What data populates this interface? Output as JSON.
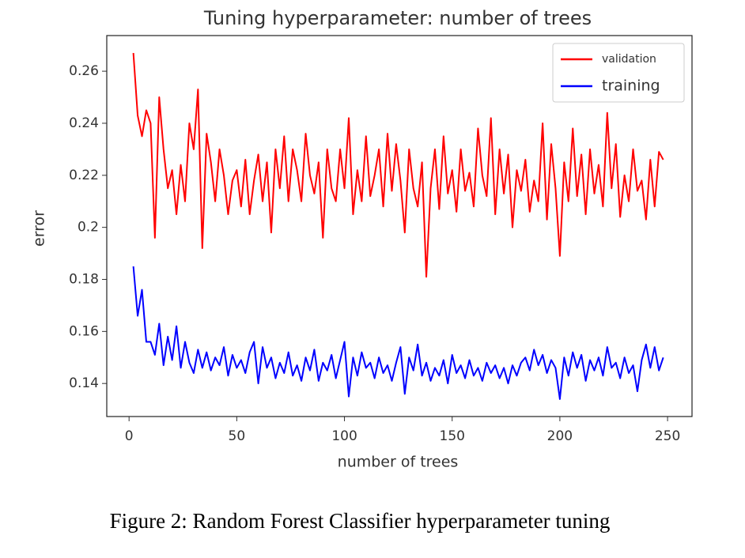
{
  "chart_data": {
    "type": "line",
    "title": "Tuning hyperparameter: number of trees",
    "xlabel": "number of trees",
    "ylabel": "error",
    "x": [
      2,
      4,
      6,
      8,
      10,
      12,
      14,
      16,
      18,
      20,
      22,
      24,
      26,
      28,
      30,
      32,
      34,
      36,
      38,
      40,
      42,
      44,
      46,
      48,
      50,
      52,
      54,
      56,
      58,
      60,
      62,
      64,
      66,
      68,
      70,
      72,
      74,
      76,
      78,
      80,
      82,
      84,
      86,
      88,
      90,
      92,
      94,
      96,
      98,
      100,
      102,
      104,
      106,
      108,
      110,
      112,
      114,
      116,
      118,
      120,
      122,
      124,
      126,
      128,
      130,
      132,
      134,
      136,
      138,
      140,
      142,
      144,
      146,
      148,
      150,
      152,
      154,
      156,
      158,
      160,
      162,
      164,
      166,
      168,
      170,
      172,
      174,
      176,
      178,
      180,
      182,
      184,
      186,
      188,
      190,
      192,
      194,
      196,
      198,
      200,
      202,
      204,
      206,
      208,
      210,
      212,
      214,
      216,
      218,
      220,
      222,
      224,
      226,
      228,
      230,
      232,
      234,
      236,
      238,
      240,
      242,
      244,
      246,
      248
    ],
    "series": [
      {
        "name": "validation",
        "color": "#ff0000",
        "values": [
          0.267,
          0.243,
          0.235,
          0.245,
          0.24,
          0.196,
          0.25,
          0.23,
          0.215,
          0.222,
          0.205,
          0.224,
          0.21,
          0.24,
          0.23,
          0.253,
          0.192,
          0.236,
          0.225,
          0.21,
          0.23,
          0.22,
          0.205,
          0.218,
          0.222,
          0.208,
          0.226,
          0.205,
          0.218,
          0.228,
          0.21,
          0.225,
          0.198,
          0.23,
          0.215,
          0.235,
          0.21,
          0.23,
          0.222,
          0.21,
          0.236,
          0.22,
          0.213,
          0.225,
          0.196,
          0.23,
          0.215,
          0.21,
          0.23,
          0.215,
          0.242,
          0.205,
          0.222,
          0.21,
          0.235,
          0.212,
          0.22,
          0.23,
          0.208,
          0.236,
          0.214,
          0.232,
          0.218,
          0.198,
          0.23,
          0.215,
          0.208,
          0.225,
          0.181,
          0.215,
          0.23,
          0.207,
          0.235,
          0.213,
          0.222,
          0.206,
          0.23,
          0.214,
          0.221,
          0.208,
          0.238,
          0.22,
          0.212,
          0.242,
          0.205,
          0.23,
          0.213,
          0.228,
          0.2,
          0.222,
          0.214,
          0.226,
          0.206,
          0.218,
          0.21,
          0.24,
          0.203,
          0.232,
          0.215,
          0.189,
          0.225,
          0.21,
          0.238,
          0.212,
          0.228,
          0.205,
          0.23,
          0.213,
          0.224,
          0.208,
          0.244,
          0.215,
          0.232,
          0.204,
          0.22,
          0.21,
          0.23,
          0.214,
          0.218,
          0.203,
          0.226,
          0.208,
          0.229,
          0.226
        ]
      },
      {
        "name": "training",
        "color": "#0000ff",
        "values": [
          0.185,
          0.166,
          0.176,
          0.156,
          0.156,
          0.151,
          0.163,
          0.147,
          0.158,
          0.149,
          0.162,
          0.146,
          0.156,
          0.148,
          0.144,
          0.153,
          0.146,
          0.152,
          0.145,
          0.15,
          0.147,
          0.154,
          0.143,
          0.151,
          0.146,
          0.149,
          0.144,
          0.152,
          0.156,
          0.14,
          0.154,
          0.146,
          0.15,
          0.142,
          0.148,
          0.144,
          0.152,
          0.143,
          0.147,
          0.141,
          0.15,
          0.145,
          0.153,
          0.141,
          0.148,
          0.145,
          0.151,
          0.142,
          0.149,
          0.156,
          0.135,
          0.15,
          0.143,
          0.152,
          0.146,
          0.148,
          0.142,
          0.15,
          0.144,
          0.147,
          0.141,
          0.148,
          0.154,
          0.136,
          0.15,
          0.145,
          0.155,
          0.143,
          0.148,
          0.141,
          0.146,
          0.143,
          0.149,
          0.14,
          0.151,
          0.144,
          0.147,
          0.142,
          0.149,
          0.143,
          0.146,
          0.141,
          0.148,
          0.144,
          0.147,
          0.142,
          0.146,
          0.14,
          0.147,
          0.143,
          0.148,
          0.15,
          0.145,
          0.153,
          0.147,
          0.151,
          0.144,
          0.149,
          0.146,
          0.134,
          0.15,
          0.143,
          0.152,
          0.146,
          0.151,
          0.141,
          0.149,
          0.145,
          0.15,
          0.143,
          0.154,
          0.146,
          0.148,
          0.142,
          0.15,
          0.144,
          0.147,
          0.137,
          0.149,
          0.155,
          0.146,
          0.154,
          0.145,
          0.15
        ]
      }
    ],
    "xlim": [
      -10.35,
      261.35
    ],
    "xticks": [
      0,
      50,
      100,
      150,
      200,
      250
    ],
    "ylim": [
      0.1273,
      0.2737
    ],
    "yticks": [
      0.14,
      0.16,
      0.18,
      0.2,
      0.22,
      0.24,
      0.26
    ],
    "legend": "upper right",
    "grid": false
  },
  "caption": "Figure 2: Random Forest Classifier hyperparameter tuning"
}
